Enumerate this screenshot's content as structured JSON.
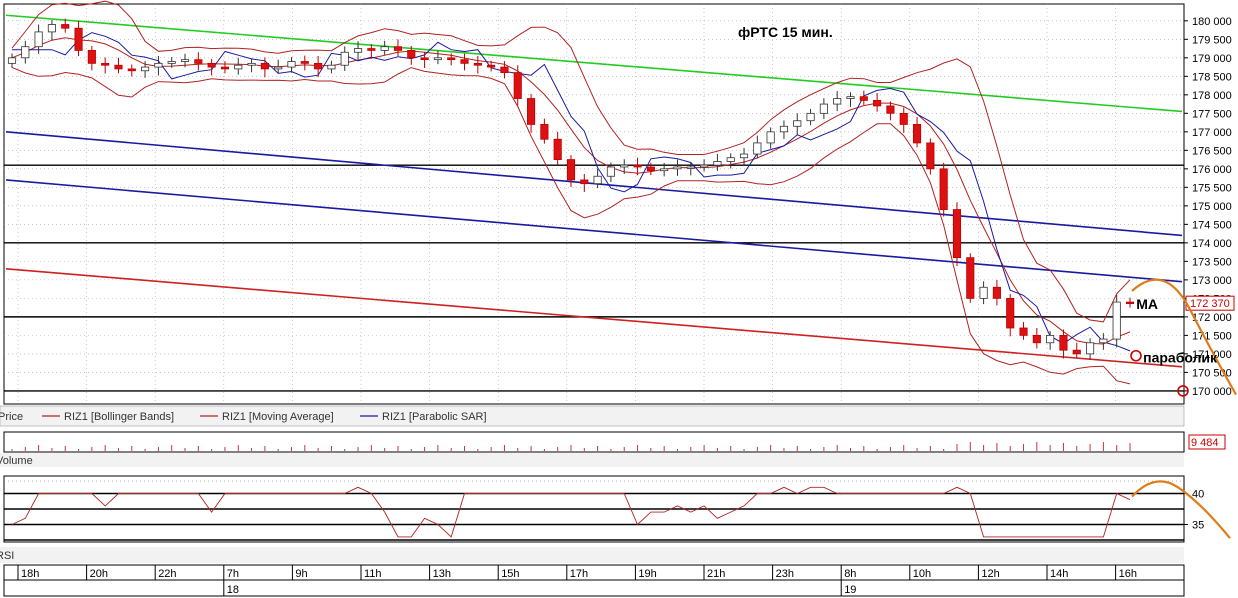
{
  "chart_data": [
    {
      "type": "candlestick",
      "title": "фРТС   15 мин.",
      "symbol": "RIZ1",
      "legend": {
        "label_price": "Price",
        "items": [
          {
            "name": "RIZ1 [Bollinger Bands]",
            "color": "#b22222"
          },
          {
            "name": "RIZ1 [Moving Average]",
            "color": "#b22222"
          },
          {
            "name": "RIZ1 [Parabolic SAR]",
            "color": "#1a1aa0"
          }
        ]
      },
      "ylim": [
        169700,
        180400
      ],
      "y_ticks": [
        "180 000",
        "179 500",
        "179 000",
        "178 500",
        "178 000",
        "177 500",
        "177 000",
        "176 500",
        "176 000",
        "175 500",
        "175 000",
        "174 500",
        "174 000",
        "173 500",
        "173 000",
        "172 500",
        "172 000",
        "171 500",
        "171 000",
        "170 500",
        "170 000"
      ],
      "y_tick_values": [
        180000,
        179500,
        179000,
        178500,
        178000,
        177500,
        177000,
        176500,
        176000,
        175500,
        175000,
        174500,
        174000,
        173500,
        173000,
        172500,
        172000,
        171500,
        171000,
        170500,
        170000
      ],
      "last_price": 172370,
      "last_price_label": "172 370",
      "horizontal_levels": [
        176100,
        174000,
        172000,
        170000
      ],
      "trend_lines": [
        {
          "color": "#22cc22",
          "from": [
            0,
            180150
          ],
          "to": [
            1,
            177550
          ]
        },
        {
          "color": "#1a1aa0",
          "from": [
            0,
            177000
          ],
          "to": [
            1,
            174200
          ]
        },
        {
          "color": "#1a1aa0",
          "from": [
            0,
            175700
          ],
          "to": [
            1,
            172950
          ]
        },
        {
          "color": "#cc2222",
          "from": [
            0,
            173300
          ],
          "to": [
            1,
            170650
          ]
        }
      ],
      "close_path": [
        179000,
        179300,
        179700,
        179900,
        179800,
        179200,
        178850,
        178800,
        178700,
        178650,
        178750,
        178850,
        178900,
        178950,
        178850,
        178750,
        178700,
        178800,
        178850,
        178700,
        178750,
        178900,
        178850,
        178700,
        178800,
        179150,
        179250,
        179200,
        179300,
        179200,
        179000,
        178950,
        179000,
        178950,
        178850,
        178800,
        178750,
        178600,
        177900,
        177200,
        176800,
        176250,
        175700,
        175600,
        175800,
        176050,
        176100,
        176050,
        175950,
        176000,
        176050,
        176050,
        176100,
        176200,
        176300,
        176400,
        176700,
        177000,
        177150,
        177300,
        177500,
        177750,
        177900,
        177950,
        177850,
        177700,
        177500,
        177200,
        176700,
        176000,
        174900,
        173600,
        172500,
        172800,
        172500,
        171700,
        171500,
        171300,
        171500,
        171100,
        171000,
        171300,
        171400,
        172400,
        172370
      ],
      "annotations": [
        {
          "text": "MA",
          "x_frac": 0.988,
          "price": 172350
        },
        {
          "text": "параболик",
          "x_frac": 0.994,
          "price": 170900
        }
      ],
      "forecast_label": ""
    },
    {
      "type": "bar",
      "panel": "Volume",
      "label": "Volume",
      "last_value_label": "9 484"
    },
    {
      "type": "line",
      "panel": "RSI",
      "label": "RSI",
      "ylim": [
        32.5,
        42.5
      ],
      "y_ticks": [
        "40",
        "35"
      ],
      "y_tick_values": [
        40,
        35
      ],
      "horizontal_levels": [
        40,
        37.5,
        35,
        32.5
      ],
      "values": [
        35,
        36,
        40,
        40,
        40,
        40,
        40,
        38,
        40,
        40,
        40,
        40,
        40,
        40,
        40,
        37,
        40,
        40,
        40,
        40,
        40,
        40,
        40,
        40,
        40,
        40,
        41,
        40,
        37,
        33,
        33,
        36,
        35,
        33,
        40,
        40,
        40,
        40,
        40,
        40,
        40,
        40,
        40,
        40,
        40,
        40,
        40,
        35,
        37,
        37,
        38,
        37,
        38,
        36,
        37,
        38,
        40,
        40,
        41,
        40,
        41,
        41,
        40,
        40,
        40,
        40,
        40,
        40,
        40,
        40,
        40,
        41,
        40,
        33,
        33,
        33,
        33,
        33,
        33,
        33,
        33,
        33,
        33,
        40,
        39
      ]
    }
  ],
  "x_axis": {
    "labels": [
      "18h",
      "20h",
      "22h",
      "7h",
      "9h",
      "11h",
      "13h",
      "15h",
      "17h",
      "19h",
      "21h",
      "23h",
      "8h",
      "10h",
      "12h",
      "14h",
      "16h"
    ],
    "dates": [
      {
        "label": "18",
        "at_label_index": 3
      },
      {
        "label": "19",
        "at_label_index": 12
      }
    ]
  }
}
